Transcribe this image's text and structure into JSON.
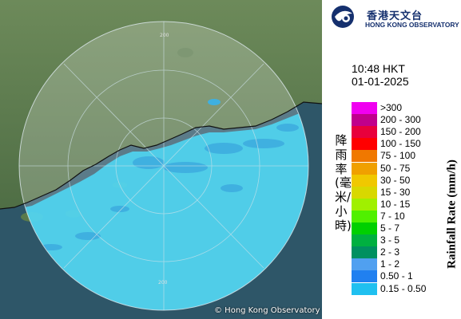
{
  "map": {
    "range_label_top": "200",
    "range_label_bottom": "200",
    "colors": {
      "land": "#5d7a4d",
      "sea": "#2e5668",
      "rain": "#4fd4f0",
      "echo": "#3fb0e0"
    }
  },
  "logo": {
    "icon": "hko-logo-icon",
    "name_zh": "香港天文台",
    "name_en": "HONG KONG OBSERVATORY"
  },
  "timestamp": {
    "time": "10:48 HKT",
    "date": "01-01-2025"
  },
  "legend": {
    "title_zh": "降雨率(毫米/小時)",
    "title_en": "Rainfall Rate (mm/h)",
    "items": [
      {
        "label": ">300",
        "color": "#f000f0"
      },
      {
        "label": "200 - 300",
        "color": "#c0008c"
      },
      {
        "label": "150 - 200",
        "color": "#e8003c"
      },
      {
        "label": "100 - 150",
        "color": "#ff0000"
      },
      {
        "label": "75 - 100",
        "color": "#f07800"
      },
      {
        "label": "50 - 75",
        "color": "#f0a000"
      },
      {
        "label": "30 - 50",
        "color": "#f0c800"
      },
      {
        "label": "15 - 30",
        "color": "#d8d800"
      },
      {
        "label": "10 - 15",
        "color": "#a0f000"
      },
      {
        "label": "7 - 10",
        "color": "#50f000"
      },
      {
        "label": "5 - 7",
        "color": "#00d000"
      },
      {
        "label": "3 - 5",
        "color": "#00b040"
      },
      {
        "label": "2 - 3",
        "color": "#009060"
      },
      {
        "label": "1 - 2",
        "color": "#50a0f0"
      },
      {
        "label": "0.50 - 1",
        "color": "#2080f0"
      },
      {
        "label": "0.15 - 0.50",
        "color": "#20c0f0"
      }
    ]
  },
  "copyright": "© Hong Kong Observatory"
}
